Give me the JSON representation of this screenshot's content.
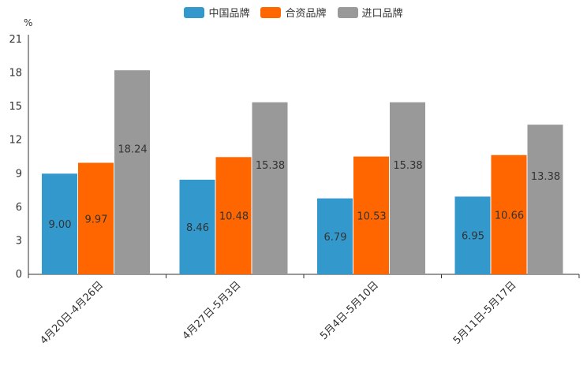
{
  "chart_data": {
    "type": "bar",
    "unit": "%",
    "categories": [
      "4月20日-4月26日",
      "4月27日-5月3日",
      "5月4日-5月10日",
      "5月11日-5月17日"
    ],
    "series": [
      {
        "name": "中国品牌",
        "color": "#3399cc",
        "values": [
          9.0,
          8.46,
          6.79,
          6.95
        ]
      },
      {
        "name": "合资品牌",
        "color": "#ff6600",
        "values": [
          9.97,
          10.48,
          10.53,
          10.66
        ]
      },
      {
        "name": "进口品牌",
        "color": "#999999",
        "values": [
          18.24,
          15.38,
          15.38,
          13.38
        ]
      }
    ],
    "value_labels": [
      [
        "9.00",
        "8.46",
        "6.79",
        "6.95"
      ],
      [
        "9.97",
        "10.48",
        "10.53",
        "10.66"
      ],
      [
        "18.24",
        "15.38",
        "15.38",
        "13.38"
      ]
    ],
    "yticks": [
      "0",
      "3",
      "6",
      "9",
      "12",
      "15",
      "18",
      "21"
    ],
    "ylim": [
      0,
      21
    ],
    "legend_position": "top-center"
  }
}
